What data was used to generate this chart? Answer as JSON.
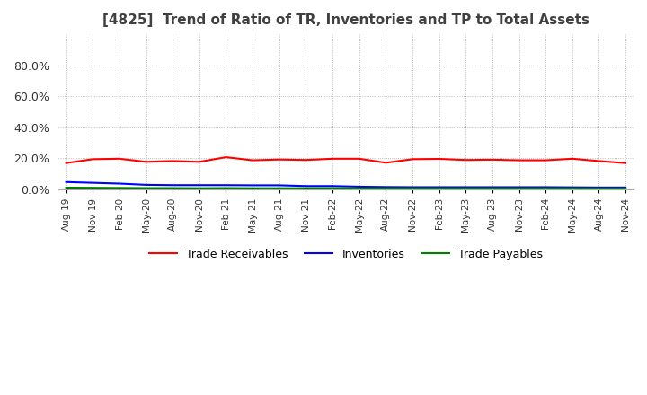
{
  "title": "[4825]  Trend of Ratio of TR, Inventories and TP to Total Assets",
  "title_fontsize": 11,
  "ylim": [
    0,
    1.0
  ],
  "yticks": [
    0.0,
    0.2,
    0.4,
    0.6,
    0.8
  ],
  "x_labels": [
    "Aug-19",
    "Nov-19",
    "Feb-20",
    "May-20",
    "Aug-20",
    "Nov-20",
    "Feb-21",
    "May-21",
    "Aug-21",
    "Nov-21",
    "Feb-22",
    "May-22",
    "Aug-22",
    "Nov-22",
    "Feb-23",
    "May-23",
    "Aug-23",
    "Nov-23",
    "Feb-24",
    "May-24",
    "Aug-24",
    "Nov-24"
  ],
  "trade_receivables": [
    0.17,
    0.195,
    0.198,
    0.178,
    0.183,
    0.178,
    0.208,
    0.188,
    0.193,
    0.19,
    0.198,
    0.198,
    0.172,
    0.195,
    0.197,
    0.19,
    0.192,
    0.188,
    0.188,
    0.198,
    0.183,
    0.17
  ],
  "inventories": [
    0.048,
    0.043,
    0.038,
    0.03,
    0.028,
    0.028,
    0.028,
    0.027,
    0.027,
    0.022,
    0.022,
    0.018,
    0.016,
    0.015,
    0.015,
    0.015,
    0.015,
    0.015,
    0.015,
    0.014,
    0.013,
    0.013
  ],
  "trade_payables": [
    0.012,
    0.011,
    0.01,
    0.009,
    0.009,
    0.008,
    0.009,
    0.008,
    0.008,
    0.008,
    0.008,
    0.007,
    0.007,
    0.007,
    0.007,
    0.007,
    0.007,
    0.007,
    0.007,
    0.007,
    0.006,
    0.006
  ],
  "tr_color": "#FF0000",
  "inv_color": "#0000FF",
  "tp_color": "#008000",
  "legend_labels": [
    "Trade Receivables",
    "Inventories",
    "Trade Payables"
  ],
  "grid_color": "#AAAAAA",
  "background_color": "#FFFFFF",
  "title_color": "#404040"
}
